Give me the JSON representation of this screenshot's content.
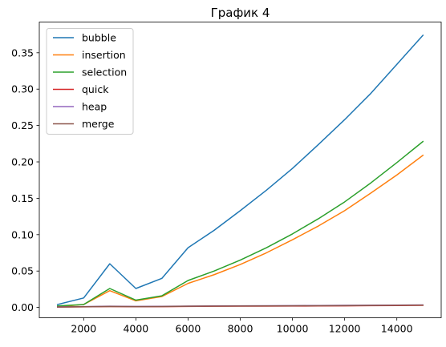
{
  "chart_data": {
    "type": "line",
    "title": "График 4",
    "xlabel": "",
    "ylabel": "",
    "xlim": [
      300,
      15700
    ],
    "ylim": [
      -0.0142,
      0.3922
    ],
    "x_ticks": [
      2000,
      4000,
      6000,
      8000,
      10000,
      12000,
      14000
    ],
    "x_tick_labels": [
      "2000",
      "4000",
      "6000",
      "8000",
      "10000",
      "12000",
      "14000"
    ],
    "y_ticks": [
      0.0,
      0.05,
      0.1,
      0.15,
      0.2,
      0.25,
      0.3,
      0.35
    ],
    "y_tick_labels": [
      "0.00",
      "0.05",
      "0.10",
      "0.15",
      "0.20",
      "0.25",
      "0.30",
      "0.35"
    ],
    "grid": false,
    "legend_position": "top-left",
    "x": [
      1000,
      2000,
      3000,
      4000,
      5000,
      6000,
      7000,
      8000,
      9000,
      10000,
      11000,
      12000,
      13000,
      14000,
      15000
    ],
    "series": [
      {
        "name": "bubble",
        "color": "#1f77b4",
        "values": [
          0.004,
          0.013,
          0.06,
          0.026,
          0.04,
          0.082,
          0.106,
          0.133,
          0.161,
          0.191,
          0.224,
          0.258,
          0.294,
          0.334,
          0.374
        ]
      },
      {
        "name": "insertion",
        "color": "#ff7f0e",
        "values": [
          0.001,
          0.004,
          0.023,
          0.009,
          0.015,
          0.033,
          0.045,
          0.059,
          0.075,
          0.093,
          0.112,
          0.133,
          0.157,
          0.182,
          0.209
        ]
      },
      {
        "name": "selection",
        "color": "#2ca02c",
        "values": [
          0.002,
          0.004,
          0.026,
          0.01,
          0.016,
          0.037,
          0.05,
          0.065,
          0.082,
          0.101,
          0.122,
          0.145,
          0.171,
          0.199,
          0.228
        ]
      },
      {
        "name": "quick",
        "color": "#d62728",
        "values": [
          0.0005,
          0.0008,
          0.0012,
          0.001,
          0.0011,
          0.0014,
          0.0016,
          0.0017,
          0.0018,
          0.0019,
          0.002,
          0.0022,
          0.0024,
          0.0026,
          0.0028
        ]
      },
      {
        "name": "heap",
        "color": "#9467bd",
        "values": [
          0.0007,
          0.0011,
          0.0016,
          0.0013,
          0.0015,
          0.0018,
          0.002,
          0.0022,
          0.0023,
          0.0025,
          0.0026,
          0.0028,
          0.003,
          0.0032,
          0.0034
        ]
      },
      {
        "name": "merge",
        "color": "#8c564b",
        "values": [
          0.0006,
          0.0009,
          0.0014,
          0.0011,
          0.0012,
          0.0016,
          0.0018,
          0.0019,
          0.002,
          0.0022,
          0.0023,
          0.0025,
          0.0027,
          0.0029,
          0.0031
        ]
      }
    ]
  }
}
